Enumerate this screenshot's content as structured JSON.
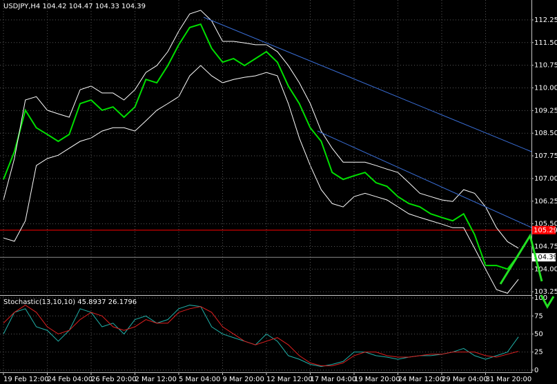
{
  "chart_data": [
    {
      "type": "line",
      "title": "USDJPY,H4  104.42 104.47 104.33 104.39",
      "ylim": [
        103.14,
        112.91
      ],
      "yticks": [
        112.25,
        {
          "value": 111.5,
          "label": "111.50"
        },
        110.75,
        {
          "value": 110.0,
          "label": "110.00"
        },
        109.25,
        {
          "value": 108.5,
          "label": "108.50"
        },
        107.75,
        {
          "value": 107.0,
          "label": "107.00"
        },
        106.25,
        {
          "value": 105.5,
          "label": "105.50"
        },
        104.75,
        {
          "value": 104.0,
          "label": "104.00"
        },
        103.25
      ],
      "grid": true,
      "levels": [
        {
          "value": 105.29,
          "label": "105.29",
          "color": "#ff0000"
        },
        {
          "value": 104.39,
          "label": "104.39",
          "color": "#8c8c8c"
        }
      ],
      "series": [
        {
          "name": "close",
          "color": "#00e000",
          "values": [
            106.97,
            107.89,
            109.26,
            108.68,
            108.46,
            108.23,
            108.46,
            109.48,
            109.6,
            109.26,
            109.37,
            109.03,
            109.37,
            110.28,
            110.17,
            110.74,
            111.43,
            112.0,
            112.11,
            111.31,
            110.85,
            110.97,
            110.74,
            110.97,
            111.2,
            110.85,
            110.06,
            109.48,
            108.68,
            108.23,
            107.2,
            106.97,
            107.09,
            107.2,
            106.86,
            106.74,
            106.4,
            106.17,
            106.06,
            105.83,
            105.71,
            105.6,
            105.83,
            105.14,
            104.12,
            104.12,
            104.0,
            104.46
          ]
        },
        {
          "name": "upper band",
          "color": "#ffffff",
          "values": [
            106.29,
            107.66,
            109.6,
            109.71,
            109.26,
            109.14,
            109.03,
            109.94,
            110.06,
            109.83,
            109.83,
            109.6,
            109.94,
            110.51,
            110.74,
            111.2,
            111.88,
            112.45,
            112.57,
            112.22,
            111.54,
            111.54,
            111.49,
            111.43,
            111.43,
            111.2,
            110.74,
            110.17,
            109.48,
            108.57,
            108.0,
            107.54,
            107.54,
            107.54,
            107.43,
            107.31,
            107.2,
            106.86,
            106.51,
            106.4,
            106.29,
            106.24,
            106.63,
            106.51,
            106.06,
            105.37,
            104.91,
            104.69
          ]
        },
        {
          "name": "lower band",
          "color": "#ffffff",
          "values": [
            105.03,
            104.92,
            105.6,
            107.43,
            107.66,
            107.77,
            108.0,
            108.23,
            108.34,
            108.57,
            108.68,
            108.68,
            108.57,
            108.91,
            109.26,
            109.48,
            109.71,
            110.4,
            110.74,
            110.4,
            110.17,
            110.28,
            110.35,
            110.4,
            110.51,
            110.4,
            109.48,
            108.34,
            107.43,
            106.63,
            106.17,
            106.06,
            106.4,
            106.51,
            106.4,
            106.29,
            106.06,
            105.83,
            105.71,
            105.6,
            105.49,
            105.37,
            105.37,
            104.69,
            104.0,
            103.32,
            103.2,
            103.66
          ]
        }
      ]
    },
    {
      "type": "line",
      "title": "Stochastic(13,10,10)  45.8937  26.1796",
      "ylim": [
        -3,
        102
      ],
      "yticks": [
        0,
        25,
        50,
        75,
        100
      ],
      "grid": true,
      "categories": [
        "19 Feb 12:00",
        null,
        null,
        null,
        "24 Feb 04:00",
        null,
        null,
        null,
        "26 Feb 20:00",
        null,
        null,
        null,
        "2 Mar 12:00",
        null,
        null,
        null,
        "5 Mar 04:00",
        null,
        null,
        null,
        "9 Mar 20:00",
        null,
        null,
        null,
        "12 Mar 12:00",
        null,
        null,
        null,
        "17 Mar 04:00",
        null,
        null,
        null,
        "19 Mar 20:00",
        null,
        null,
        null,
        "24 Mar 12:00",
        null,
        null,
        null,
        "29 Mar 04:00",
        null,
        null,
        null,
        "31 Mar 20:00",
        null,
        null,
        null
      ],
      "series": [
        {
          "name": "main",
          "color": "#20b2aa",
          "values": [
            50,
            80,
            85,
            60,
            55,
            40,
            55,
            85,
            80,
            60,
            65,
            50,
            70,
            75,
            65,
            70,
            85,
            90,
            88,
            60,
            50,
            45,
            40,
            35,
            50,
            40,
            20,
            15,
            8,
            5,
            8,
            12,
            25,
            25,
            20,
            18,
            15,
            18,
            20,
            20,
            22,
            25,
            30,
            20,
            15,
            20,
            25,
            46
          ]
        },
        {
          "name": "signal",
          "color": "#e02020",
          "values": [
            65,
            80,
            90,
            80,
            60,
            50,
            55,
            70,
            80,
            75,
            60,
            55,
            60,
            70,
            65,
            65,
            80,
            85,
            88,
            80,
            60,
            50,
            40,
            35,
            40,
            45,
            35,
            20,
            10,
            6,
            6,
            10,
            20,
            25,
            25,
            20,
            18,
            18,
            20,
            22,
            22,
            25,
            25,
            25,
            20,
            18,
            22,
            26
          ]
        }
      ]
    }
  ]
}
